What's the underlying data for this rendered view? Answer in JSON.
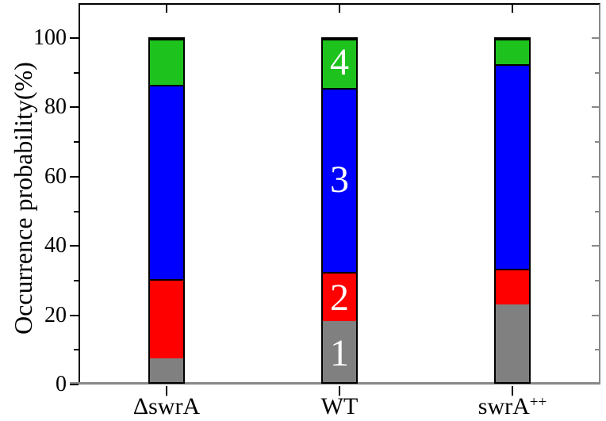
{
  "chart_data": {
    "type": "bar",
    "stacked": true,
    "orientation": "vertical",
    "title": "",
    "ylabel": "Occurrence probability(%)",
    "xlabel": "",
    "ylim": [
      0,
      110
    ],
    "yticks_major": [
      0,
      20,
      40,
      60,
      80,
      100
    ],
    "yticks_minor": [
      10,
      30,
      50,
      70,
      90
    ],
    "grid": false,
    "legend_position": "none",
    "categories": [
      {
        "label": "ΔswrA",
        "sup": ""
      },
      {
        "label": "WT",
        "sup": ""
      },
      {
        "label": "swrA",
        "sup": "++"
      }
    ],
    "series": [
      {
        "name": "1",
        "color": "#808080",
        "values": [
          7,
          18,
          23
        ]
      },
      {
        "name": "2",
        "color": "#ff0000",
        "values": [
          23,
          14,
          10
        ]
      },
      {
        "name": "3",
        "color": "#0000ff",
        "values": [
          57,
          54,
          60
        ]
      },
      {
        "name": "4",
        "color": "#1dc21d",
        "values": [
          13,
          14,
          7
        ]
      }
    ],
    "segment_labels": {
      "bar_index": 1,
      "labels": [
        "1",
        "2",
        "3",
        "4"
      ],
      "color": "#ffffff"
    },
    "axis_colors": {
      "left": "#000000",
      "top": "#000000",
      "right": "#888888",
      "bottom": "#888888"
    },
    "bar_outline_color": "#000000"
  }
}
